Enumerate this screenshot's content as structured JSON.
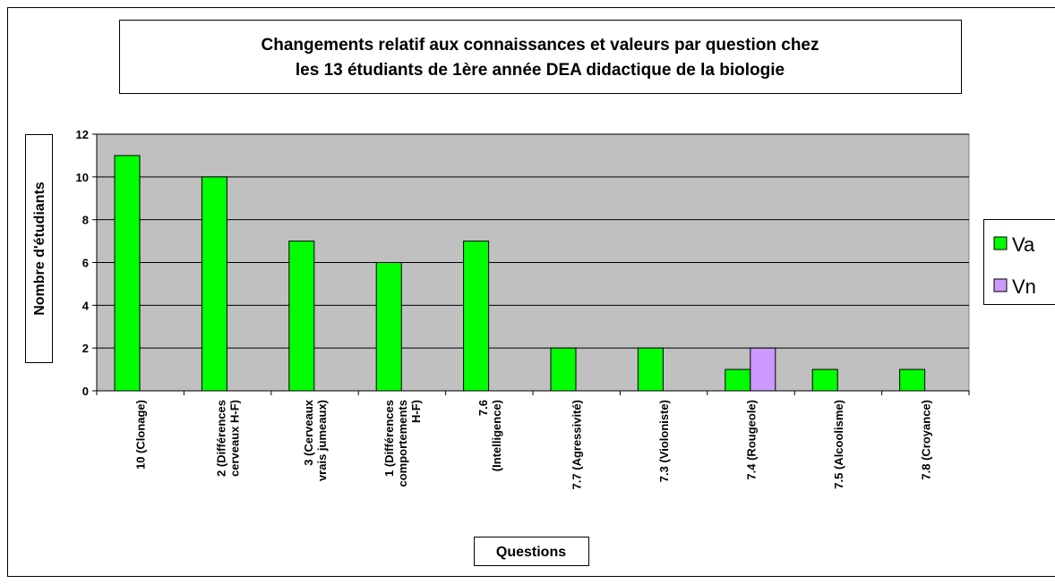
{
  "chart_data": {
    "type": "bar",
    "title": "Changements  relatif aux connaissances et valeurs par question chez\nles 13 étudiants de 1ère année DEA didactique de la biologie",
    "x_label": "Questions",
    "y_label": "Nombre d'étudiants",
    "categories": [
      "10 (Clonage)",
      "2 (Différences\ncerveaux H-F)",
      "3 (Cerveaux\nvrais jumeaux)",
      "1 (Différences\ncomportements\nH-F)",
      "7.6\n(Intelligence)",
      "7.7 (Agressivité)",
      "7.3 (Violoniste)",
      "7.4 (Rougeole)",
      "7.5 (Alcoolisme)",
      "7.8 (Croyance)"
    ],
    "series": [
      {
        "name": "Va",
        "color": "#00ff00",
        "values": [
          11,
          10,
          7,
          6,
          7,
          2,
          2,
          1,
          1,
          1
        ]
      },
      {
        "name": "Vn",
        "color": "#cc99ff",
        "values": [
          0,
          0,
          0,
          0,
          0,
          0,
          0,
          2,
          0,
          0
        ]
      }
    ],
    "ylim": [
      0,
      12
    ],
    "yticks": [
      0,
      2,
      4,
      6,
      8,
      10,
      12
    ],
    "grid": true,
    "plot_background": "#c0c0c0",
    "legend": "right"
  }
}
